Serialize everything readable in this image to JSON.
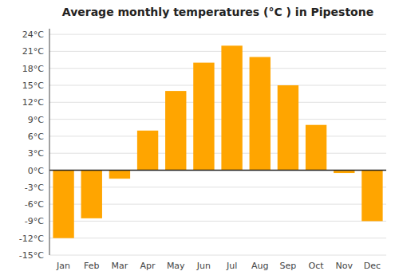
{
  "chart_data": {
    "type": "bar",
    "title": "Average monthly temperatures (°C ) in Pipestone",
    "categories": [
      "Jan",
      "Feb",
      "Mar",
      "Apr",
      "May",
      "Jun",
      "Jul",
      "Aug",
      "Sep",
      "Oct",
      "Nov",
      "Dec"
    ],
    "values": [
      -12.0,
      -8.5,
      -1.5,
      7.0,
      14.0,
      19.0,
      22.0,
      20.0,
      15.0,
      8.0,
      -0.5,
      -9.0
    ],
    "color": "#FFA500",
    "ylim": [
      -15,
      25
    ],
    "yticks": [
      {
        "value": -15,
        "label": "-15°C"
      },
      {
        "value": -12,
        "label": "-12°C"
      },
      {
        "value": -9,
        "label": "-9°C"
      },
      {
        "value": -6,
        "label": "-6°C"
      },
      {
        "value": -3,
        "label": "-3°C"
      },
      {
        "value": 0,
        "label": "0°C"
      },
      {
        "value": 3,
        "label": "3°C"
      },
      {
        "value": 6,
        "label": "6°C"
      },
      {
        "value": 9,
        "label": "9°C"
      },
      {
        "value": 12,
        "label": "12°C"
      },
      {
        "value": 15,
        "label": "15°C"
      },
      {
        "value": 18,
        "label": "18°C"
      },
      {
        "value": 21,
        "label": "21°C"
      },
      {
        "value": 24,
        "label": "24°C"
      }
    ],
    "grid": true
  }
}
